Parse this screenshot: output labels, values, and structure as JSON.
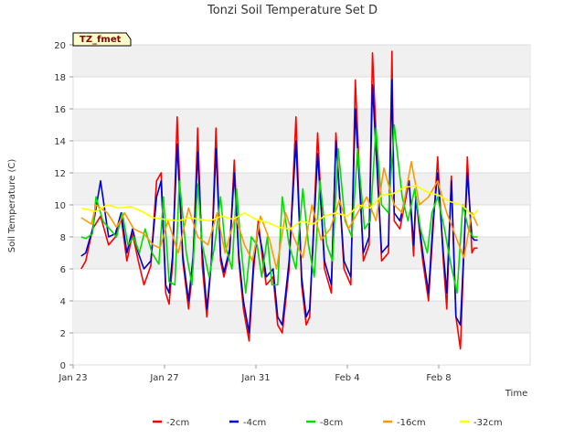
{
  "chart_data": {
    "type": "line",
    "title": "Tonzi Soil Temperature Set D",
    "xlabel": "Time",
    "ylabel": "Soil Temperature (C)",
    "tag": "TZ_fmet",
    "xlim": [
      0,
      20
    ],
    "ylim": [
      0,
      20
    ],
    "x_ticks": [
      {
        "x": 0,
        "label": "Jan 23"
      },
      {
        "x": 4,
        "label": "Jan 27"
      },
      {
        "x": 8,
        "label": "Jan 31"
      },
      {
        "x": 12,
        "label": "Feb 4"
      },
      {
        "x": 16,
        "label": "Feb 8"
      }
    ],
    "y_ticks": [
      0,
      2,
      4,
      6,
      8,
      10,
      12,
      14,
      16,
      18,
      20
    ],
    "grid": "horizontal alternating bands",
    "legend_position": "bottom",
    "series": [
      {
        "name": "-2cm",
        "color": "#ff0000",
        "x": [
          0.35,
          0.55,
          0.85,
          1.2,
          1.55,
          1.85,
          2.1,
          2.35,
          2.6,
          2.85,
          3.1,
          3.4,
          3.65,
          3.85,
          4.05,
          4.2,
          4.35,
          4.55,
          4.8,
          5.05,
          5.25,
          5.45,
          5.65,
          5.85,
          6.05,
          6.25,
          6.45,
          6.6,
          6.85,
          7.05,
          7.25,
          7.45,
          7.7,
          7.9,
          8.1,
          8.3,
          8.45,
          8.75,
          8.95,
          9.15,
          9.45,
          9.75,
          10.0,
          10.2,
          10.35,
          10.7,
          11.0,
          11.3,
          11.5,
          11.85,
          12.15,
          12.35,
          12.7,
          12.95,
          13.1,
          13.5,
          13.8,
          13.95,
          14.05,
          14.3,
          14.7,
          14.9,
          15.0,
          15.3,
          15.55,
          15.75,
          15.95,
          16.2,
          16.35,
          16.55,
          16.75,
          16.95,
          17.25,
          17.45,
          17.55,
          17.7
        ],
        "values": [
          6.0,
          6.5,
          8.5,
          9.3,
          7.5,
          8.0,
          9.2,
          6.5,
          8.2,
          6.5,
          5.0,
          6.2,
          11.5,
          12.0,
          4.5,
          3.8,
          6.3,
          15.5,
          6.5,
          3.5,
          6.3,
          14.8,
          6.2,
          3.0,
          6.5,
          14.8,
          6.5,
          5.5,
          7.0,
          12.8,
          6.5,
          3.5,
          1.5,
          6.0,
          9.0,
          6.5,
          5.0,
          5.5,
          2.5,
          2.0,
          6.0,
          15.5,
          5.0,
          2.5,
          3.0,
          14.5,
          6.0,
          4.5,
          14.5,
          6.0,
          5.0,
          17.8,
          6.5,
          7.5,
          19.5,
          6.5,
          7.0,
          19.6,
          9.0,
          8.5,
          11.5,
          6.8,
          10.5,
          6.5,
          4.0,
          8.5,
          13.0,
          6.5,
          3.5,
          11.8,
          3.0,
          1.0,
          13.0,
          7.0,
          7.3,
          7.3
        ]
      },
      {
        "name": "-4cm",
        "color": "#0000cc",
        "x": [
          0.35,
          0.55,
          0.85,
          1.2,
          1.55,
          1.85,
          2.1,
          2.35,
          2.6,
          2.85,
          3.1,
          3.4,
          3.65,
          3.85,
          4.05,
          4.2,
          4.35,
          4.55,
          4.8,
          5.05,
          5.25,
          5.45,
          5.65,
          5.85,
          6.05,
          6.25,
          6.45,
          6.6,
          6.85,
          7.05,
          7.25,
          7.45,
          7.7,
          7.9,
          8.1,
          8.3,
          8.45,
          8.75,
          8.95,
          9.15,
          9.45,
          9.75,
          10.0,
          10.2,
          10.35,
          10.7,
          11.0,
          11.3,
          11.5,
          11.85,
          12.15,
          12.35,
          12.7,
          12.95,
          13.1,
          13.5,
          13.8,
          13.95,
          14.05,
          14.3,
          14.7,
          14.9,
          15.0,
          15.3,
          15.55,
          15.75,
          15.95,
          16.2,
          16.35,
          16.55,
          16.75,
          16.95,
          17.25,
          17.45,
          17.55,
          17.7
        ],
        "values": [
          6.8,
          7.0,
          8.5,
          11.5,
          8.0,
          8.2,
          9.5,
          7.0,
          8.5,
          7.0,
          6.0,
          6.5,
          10.5,
          11.5,
          5.0,
          4.5,
          6.8,
          13.8,
          6.8,
          4.0,
          6.8,
          13.3,
          7.0,
          3.5,
          6.5,
          13.5,
          6.8,
          5.8,
          7.2,
          12.0,
          6.8,
          4.0,
          2.0,
          6.5,
          8.5,
          7.0,
          5.5,
          6.0,
          3.0,
          2.5,
          6.5,
          14.0,
          5.5,
          3.0,
          3.5,
          13.2,
          6.5,
          5.0,
          14.0,
          6.5,
          5.5,
          16.0,
          7.0,
          8.0,
          17.5,
          7.0,
          7.5,
          17.8,
          9.5,
          9.0,
          11.5,
          7.5,
          10.5,
          7.0,
          4.5,
          9.0,
          12.0,
          7.0,
          4.5,
          11.5,
          3.0,
          2.5,
          12.0,
          8.0,
          7.8,
          7.8
        ]
      },
      {
        "name": "-8cm",
        "color": "#00dd00",
        "x": [
          0.35,
          0.55,
          0.85,
          1.0,
          1.3,
          1.6,
          1.9,
          2.15,
          2.4,
          2.65,
          2.9,
          3.15,
          3.45,
          3.75,
          3.95,
          4.2,
          4.45,
          4.65,
          4.95,
          5.2,
          5.45,
          5.65,
          5.95,
          6.2,
          6.45,
          6.65,
          6.95,
          7.15,
          7.35,
          7.55,
          7.8,
          8.05,
          8.25,
          8.5,
          8.7,
          8.95,
          9.15,
          9.45,
          9.75,
          10.05,
          10.3,
          10.55,
          10.8,
          11.1,
          11.35,
          11.6,
          11.9,
          12.2,
          12.45,
          12.75,
          13.0,
          13.25,
          13.5,
          13.8,
          14.05,
          14.4,
          14.65,
          14.95,
          15.2,
          15.5,
          15.7,
          15.95,
          16.25,
          16.5,
          16.8,
          17.05,
          17.3,
          17.5,
          17.7
        ],
        "values": [
          8.0,
          7.9,
          8.2,
          10.5,
          9.0,
          8.5,
          8.0,
          9.5,
          7.5,
          8.0,
          7.0,
          8.5,
          7.0,
          6.3,
          10.5,
          5.2,
          5.0,
          11.5,
          7.0,
          5.0,
          11.3,
          7.5,
          5.5,
          7.5,
          10.5,
          7.5,
          6.0,
          11.0,
          7.3,
          4.5,
          8.0,
          7.5,
          5.5,
          8.0,
          5.0,
          5.0,
          10.5,
          7.5,
          6.0,
          11.0,
          7.5,
          5.5,
          11.5,
          7.5,
          6.5,
          13.5,
          9.0,
          8.0,
          13.5,
          8.5,
          9.0,
          14.8,
          10.0,
          9.5,
          15.0,
          10.5,
          9.0,
          11.0,
          8.5,
          7.0,
          9.5,
          10.5,
          8.5,
          6.5,
          4.5,
          10.0,
          8.5,
          8.0,
          8.0
        ]
      },
      {
        "name": "-16cm",
        "color": "#ff9900",
        "x": [
          0.35,
          0.8,
          1.0,
          1.5,
          1.9,
          2.25,
          2.65,
          3.1,
          3.5,
          3.8,
          4.15,
          4.6,
          5.05,
          5.45,
          5.9,
          6.3,
          6.65,
          7.1,
          7.5,
          7.85,
          8.2,
          8.6,
          8.9,
          9.3,
          9.65,
          10.05,
          10.45,
          10.85,
          11.25,
          11.65,
          12.05,
          12.45,
          12.85,
          13.25,
          13.6,
          14.05,
          14.4,
          14.8,
          15.15,
          15.55,
          15.95,
          16.35,
          16.75,
          17.1,
          17.45,
          17.7
        ],
        "values": [
          9.2,
          8.8,
          10.0,
          9.5,
          8.6,
          9.5,
          8.5,
          8.2,
          7.5,
          7.3,
          9.0,
          7.0,
          9.8,
          8.0,
          7.5,
          9.5,
          7.0,
          9.3,
          7.5,
          6.5,
          9.3,
          7.8,
          6.0,
          9.5,
          8.0,
          6.7,
          10.0,
          7.8,
          8.5,
          10.3,
          8.5,
          9.5,
          10.5,
          9.0,
          12.3,
          10.0,
          9.5,
          12.7,
          10.0,
          10.5,
          11.5,
          9.5,
          8.0,
          6.7,
          9.5,
          8.7
        ]
      },
      {
        "name": "-32cm",
        "color": "#ffff00",
        "x": [
          0.35,
          1.0,
          1.5,
          2.0,
          2.5,
          3.0,
          3.5,
          4.0,
          4.6,
          5.1,
          5.5,
          6.0,
          6.5,
          7.0,
          7.5,
          8.0,
          8.5,
          9.0,
          9.5,
          10.0,
          10.5,
          11.0,
          11.5,
          12.0,
          12.5,
          13.0,
          13.5,
          14.0,
          14.5,
          15.0,
          15.5,
          16.0,
          16.5,
          17.0,
          17.5,
          17.7
        ],
        "values": [
          9.8,
          9.6,
          10.0,
          9.8,
          9.9,
          9.6,
          9.2,
          9.1,
          9.0,
          9.2,
          9.1,
          9.0,
          9.3,
          9.1,
          9.5,
          9.1,
          8.9,
          8.6,
          8.5,
          9.0,
          8.8,
          9.3,
          9.5,
          9.3,
          10.0,
          9.8,
          10.6,
          10.7,
          11.1,
          11.2,
          10.8,
          10.6,
          10.2,
          10.0,
          9.3,
          9.7
        ]
      }
    ]
  }
}
